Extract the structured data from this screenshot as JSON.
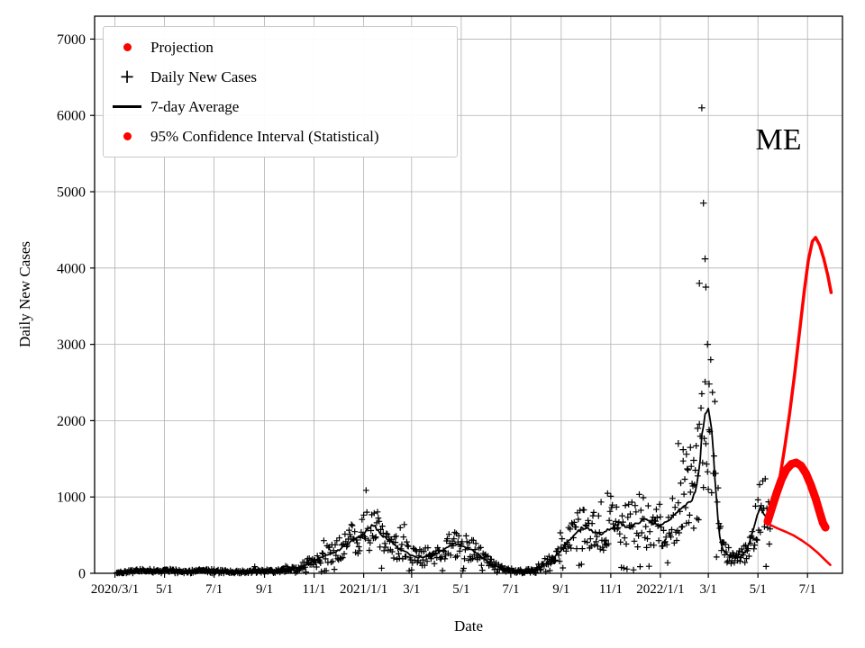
{
  "figure": {
    "state_label": "ME",
    "background": "#ffffff",
    "accent_color": "#ff0000",
    "grid_color": "#b0b0b0"
  },
  "legend": {
    "position": "upper-left",
    "items": [
      {
        "label": "Projection",
        "marker": "dot",
        "color": "#ff0000"
      },
      {
        "label": "Daily New Cases",
        "marker": "plus",
        "color": "#000000"
      },
      {
        "label": "7-day Average",
        "marker": "line",
        "color": "#000000"
      },
      {
        "label": "95% Confidence Interval (Statistical)",
        "marker": "dot",
        "color": "#ff0000"
      }
    ]
  },
  "chart_data": {
    "type": "scatter",
    "title": "",
    "xlabel": "Date",
    "ylabel": "Daily New Cases",
    "annotation": "ME",
    "grid": true,
    "x_axis": {
      "unit": "days since 2020-03-01",
      "domain": [
        -25,
        895
      ],
      "ticks": [
        {
          "day": 0,
          "label": "2020/3/1"
        },
        {
          "day": 61,
          "label": "5/1"
        },
        {
          "day": 122,
          "label": "7/1"
        },
        {
          "day": 184,
          "label": "9/1"
        },
        {
          "day": 245,
          "label": "11/1"
        },
        {
          "day": 306,
          "label": "2021/1/1"
        },
        {
          "day": 365,
          "label": "3/1"
        },
        {
          "day": 426,
          "label": "5/1"
        },
        {
          "day": 487,
          "label": "7/1"
        },
        {
          "day": 549,
          "label": "9/1"
        },
        {
          "day": 610,
          "label": "11/1"
        },
        {
          "day": 671,
          "label": "2022/1/1"
        },
        {
          "day": 730,
          "label": "3/1"
        },
        {
          "day": 791,
          "label": "5/1"
        },
        {
          "day": 852,
          "label": "7/1"
        }
      ]
    },
    "y_axis": {
      "domain": [
        0,
        7300
      ],
      "ticks": [
        0,
        1000,
        2000,
        3000,
        4000,
        5000,
        6000,
        7000
      ]
    },
    "series": [
      {
        "name": "7-day Average",
        "type": "line",
        "color": "#000000",
        "width": 1.8,
        "points": [
          [
            0,
            5
          ],
          [
            7,
            15
          ],
          [
            14,
            25
          ],
          [
            21,
            30
          ],
          [
            30,
            32
          ],
          [
            45,
            30
          ],
          [
            61,
            35
          ],
          [
            75,
            28
          ],
          [
            90,
            22
          ],
          [
            105,
            28
          ],
          [
            122,
            32
          ],
          [
            140,
            22
          ],
          [
            160,
            25
          ],
          [
            184,
            30
          ],
          [
            200,
            35
          ],
          [
            214,
            45
          ],
          [
            225,
            70
          ],
          [
            235,
            110
          ],
          [
            245,
            160
          ],
          [
            255,
            210
          ],
          [
            265,
            260
          ],
          [
            275,
            300
          ],
          [
            285,
            380
          ],
          [
            295,
            450
          ],
          [
            306,
            520
          ],
          [
            312,
            600
          ],
          [
            318,
            630
          ],
          [
            324,
            560
          ],
          [
            330,
            490
          ],
          [
            338,
            430
          ],
          [
            346,
            350
          ],
          [
            355,
            290
          ],
          [
            365,
            235
          ],
          [
            372,
            205
          ],
          [
            380,
            215
          ],
          [
            388,
            240
          ],
          [
            396,
            265
          ],
          [
            404,
            310
          ],
          [
            412,
            355
          ],
          [
            418,
            385
          ],
          [
            424,
            370
          ],
          [
            430,
            345
          ],
          [
            438,
            310
          ],
          [
            446,
            255
          ],
          [
            454,
            190
          ],
          [
            462,
            130
          ],
          [
            470,
            90
          ],
          [
            478,
            60
          ],
          [
            487,
            38
          ],
          [
            495,
            25
          ],
          [
            503,
            22
          ],
          [
            511,
            35
          ],
          [
            519,
            65
          ],
          [
            527,
            110
          ],
          [
            535,
            170
          ],
          [
            542,
            230
          ],
          [
            549,
            300
          ],
          [
            556,
            400
          ],
          [
            562,
            470
          ],
          [
            568,
            530
          ],
          [
            574,
            590
          ],
          [
            580,
            600
          ],
          [
            586,
            560
          ],
          [
            592,
            525
          ],
          [
            598,
            505
          ],
          [
            604,
            545
          ],
          [
            610,
            600
          ],
          [
            616,
            625
          ],
          [
            622,
            655
          ],
          [
            628,
            620
          ],
          [
            634,
            600
          ],
          [
            640,
            640
          ],
          [
            646,
            670
          ],
          [
            652,
            700
          ],
          [
            658,
            670
          ],
          [
            664,
            640
          ],
          [
            671,
            620
          ],
          [
            677,
            660
          ],
          [
            683,
            710
          ],
          [
            689,
            770
          ],
          [
            695,
            840
          ],
          [
            701,
            900
          ],
          [
            707,
            950
          ],
          [
            713,
            1010
          ],
          [
            718,
            1300
          ],
          [
            723,
            1900
          ],
          [
            727,
            2080
          ],
          [
            731,
            2100
          ],
          [
            735,
            1750
          ],
          [
            739,
            1100
          ],
          [
            743,
            550
          ],
          [
            747,
            320
          ],
          [
            752,
            260
          ],
          [
            758,
            225
          ],
          [
            764,
            210
          ],
          [
            770,
            215
          ],
          [
            776,
            280
          ],
          [
            781,
            420
          ],
          [
            786,
            600
          ],
          [
            791,
            800
          ],
          [
            795,
            880
          ],
          [
            799,
            760
          ],
          [
            803,
            680
          ],
          [
            806,
            650
          ]
        ]
      },
      {
        "name": "Daily New Cases",
        "type": "scatter",
        "marker": "plus",
        "color": "#000000",
        "generated_from": "7-day Average with multiplicative noise",
        "noise": {
          "seed": 42,
          "mult_range": [
            0.5,
            1.5
          ],
          "add_amp": 36,
          "day_start": 2,
          "day_end": 806
        },
        "outliers": [
          [
            719,
            3800
          ],
          [
            722,
            6100
          ],
          [
            724,
            4850
          ],
          [
            726,
            4120
          ],
          [
            727,
            3750
          ],
          [
            729,
            3000
          ],
          [
            731,
            2480
          ],
          [
            717,
            1900
          ],
          [
            693,
            1700
          ],
          [
            699,
            1620
          ],
          [
            703,
            1560
          ],
          [
            708,
            1650
          ],
          [
            712,
            1480
          ]
        ]
      },
      {
        "name": "Projection",
        "type": "line",
        "color": "#ff0000",
        "width": 9,
        "points": [
          [
            803,
            680
          ],
          [
            808,
            850
          ],
          [
            814,
            1050
          ],
          [
            820,
            1230
          ],
          [
            826,
            1360
          ],
          [
            832,
            1430
          ],
          [
            838,
            1450
          ],
          [
            844,
            1410
          ],
          [
            850,
            1310
          ],
          [
            856,
            1160
          ],
          [
            862,
            980
          ],
          [
            867,
            800
          ],
          [
            871,
            660
          ],
          [
            874,
            600
          ]
        ]
      },
      {
        "name": "95% Confidence Interval upper",
        "type": "line",
        "color": "#ff0000",
        "width": 3.5,
        "points": [
          [
            805,
            700
          ],
          [
            812,
            950
          ],
          [
            818,
            1250
          ],
          [
            824,
            1650
          ],
          [
            830,
            2100
          ],
          [
            836,
            2600
          ],
          [
            842,
            3150
          ],
          [
            848,
            3700
          ],
          [
            853,
            4100
          ],
          [
            858,
            4350
          ],
          [
            862,
            4400
          ],
          [
            867,
            4300
          ],
          [
            872,
            4120
          ],
          [
            877,
            3900
          ],
          [
            881,
            3680
          ]
        ]
      },
      {
        "name": "95% Confidence Interval lower",
        "type": "line",
        "color": "#ff0000",
        "width": 2.5,
        "points": [
          [
            805,
            640
          ],
          [
            815,
            590
          ],
          [
            825,
            545
          ],
          [
            835,
            495
          ],
          [
            845,
            430
          ],
          [
            855,
            355
          ],
          [
            865,
            265
          ],
          [
            873,
            180
          ],
          [
            880,
            110
          ]
        ]
      }
    ]
  }
}
